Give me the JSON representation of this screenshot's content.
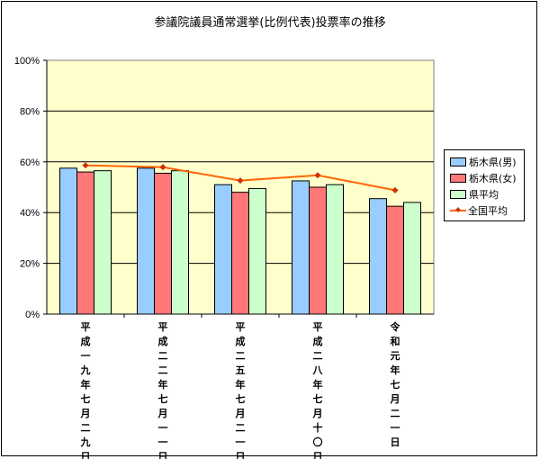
{
  "chart_data": {
    "type": "bar",
    "title": "参議院議員通常選挙(比例代表)投票率の推移",
    "categories": [
      "平成一九年七月二九日",
      "平成二二年七月一一日",
      "平成二五年七月二一日",
      "平成二八年七月十〇日",
      "令和元年七月二一日"
    ],
    "y_ticks": [
      "0%",
      "20%",
      "40%",
      "60%",
      "80%",
      "100%"
    ],
    "ylim": [
      0,
      100
    ],
    "grid": true,
    "legend_position": "right",
    "plot_background": "#ffffcc",
    "series": [
      {
        "name": "栃木県(男)",
        "type": "bar",
        "color": "#99ccff",
        "values": [
          57.5,
          57.5,
          51.0,
          52.5,
          45.5
        ]
      },
      {
        "name": "栃木県(女)",
        "type": "bar",
        "color": "#ff7777",
        "values": [
          56.0,
          55.5,
          48.0,
          50.0,
          42.5
        ]
      },
      {
        "name": "県平均",
        "type": "bar",
        "color": "#ccffcc",
        "values": [
          56.5,
          56.5,
          49.5,
          51.0,
          44.0
        ]
      },
      {
        "name": "全国平均",
        "type": "line",
        "color": "#ff6600",
        "values": [
          58.6,
          57.9,
          52.6,
          54.7,
          48.8
        ]
      }
    ]
  }
}
